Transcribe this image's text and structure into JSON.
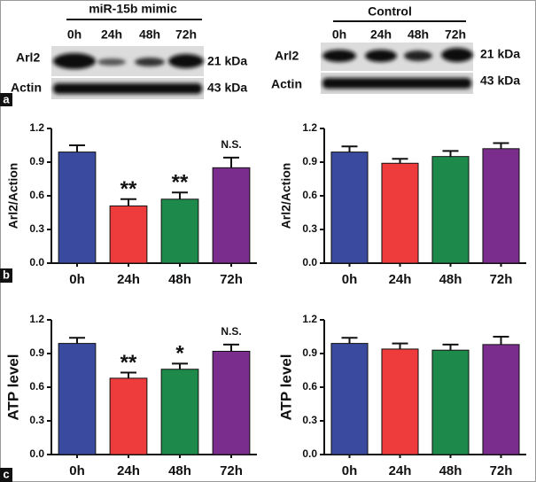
{
  "blots": [
    {
      "group": "miR-15b mimic",
      "lanes": [
        "0h",
        "24h",
        "48h",
        "72h"
      ],
      "rows": [
        "Arl2",
        "Actin"
      ],
      "sizes": [
        "21 kDa",
        "43 kDa"
      ]
    },
    {
      "group": "Control",
      "lanes": [
        "0h",
        "24h",
        "48h",
        "72h"
      ],
      "rows": [
        "Arl2",
        "Actin"
      ],
      "sizes": [
        "21 kDa",
        "43 kDa"
      ]
    }
  ],
  "panel_labels": [
    "a",
    "b",
    "c"
  ],
  "chart_data": [
    {
      "type": "bar",
      "ylabel": "Arl2/Action",
      "categories": [
        "0h",
        "24h",
        "48h",
        "72h"
      ],
      "values": [
        0.99,
        0.51,
        0.57,
        0.85
      ],
      "errors": [
        0.06,
        0.06,
        0.06,
        0.09
      ],
      "annotations": [
        null,
        "**",
        "**",
        "N.S."
      ],
      "colors": [
        "#3a4a9e",
        "#ee3b3b",
        "#1d8a4b",
        "#7a2d8c"
      ],
      "ylim": [
        0,
        1.2
      ],
      "yticks": [
        {
          "value": 0,
          "label": "0.0"
        },
        0.3,
        0.6,
        0.9,
        1.2
      ]
    },
    {
      "type": "bar",
      "ylabel": "Arl2/Action",
      "categories": [
        "0h",
        "24h",
        "48h",
        "72h"
      ],
      "values": [
        0.99,
        0.89,
        0.95,
        1.02
      ],
      "errors": [
        0.05,
        0.04,
        0.05,
        0.05
      ],
      "colors": [
        "#3a4a9e",
        "#ee3b3b",
        "#1d8a4b",
        "#7a2d8c"
      ],
      "ylim": [
        0,
        1.2
      ],
      "yticks": [
        {
          "value": 0,
          "label": "0.0"
        },
        0.3,
        0.6,
        0.9,
        1.2
      ]
    },
    {
      "type": "bar",
      "ylabel": "ATP level",
      "categories": [
        "0h",
        "24h",
        "48h",
        "72h"
      ],
      "values": [
        0.99,
        0.68,
        0.76,
        0.92
      ],
      "errors": [
        0.05,
        0.05,
        0.05,
        0.06
      ],
      "annotations": [
        null,
        "**",
        "*",
        "N.S."
      ],
      "colors": [
        "#3a4a9e",
        "#ee3b3b",
        "#1d8a4b",
        "#7a2d8c"
      ],
      "ylim": [
        0,
        1.2
      ],
      "yticks": [
        {
          "value": 0,
          "label": "0.0"
        },
        0.3,
        0.6,
        0.9,
        1.2
      ]
    },
    {
      "type": "bar",
      "ylabel": "ATP level",
      "categories": [
        "0h",
        "24h",
        "48h",
        "72h"
      ],
      "values": [
        0.99,
        0.94,
        0.93,
        0.98
      ],
      "errors": [
        0.05,
        0.05,
        0.05,
        0.07
      ],
      "colors": [
        "#3a4a9e",
        "#ee3b3b",
        "#1d8a4b",
        "#7a2d8c"
      ],
      "ylim": [
        0,
        1.2
      ],
      "yticks": [
        {
          "value": 0,
          "label": "0.0"
        },
        0.3,
        0.6,
        0.9,
        1.2
      ]
    }
  ]
}
